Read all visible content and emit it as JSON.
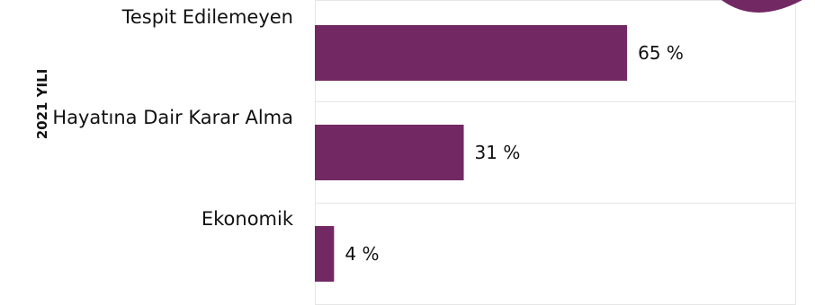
{
  "chart_data": {
    "type": "bar",
    "orientation": "horizontal",
    "group_label": "2021 YILI",
    "categories": [
      "Tespit Edilemeyen",
      "Hayatına Dair Karar Alma",
      "Ekonomik"
    ],
    "values": [
      65,
      31,
      4
    ],
    "value_labels": [
      "65 %",
      "31 %",
      "4 %"
    ],
    "xlim": [
      0,
      100
    ],
    "grid": true,
    "colors": {
      "bar": "#722963",
      "grid": "#e6e6e6",
      "badge": "#722963"
    }
  }
}
